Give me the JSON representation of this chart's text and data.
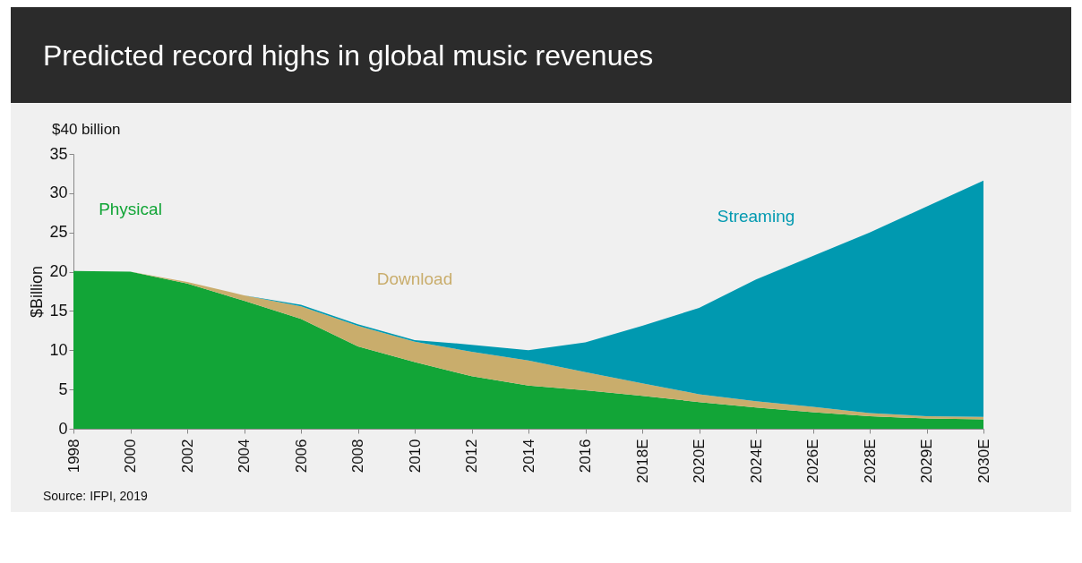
{
  "chart_data": {
    "type": "area",
    "title": "Predicted record highs in global music revenues",
    "ylabel": "$Billion",
    "stacked": true,
    "legend": false,
    "grid": false,
    "annotations": [
      "$40 billion",
      "Source: IFPI, 2019"
    ],
    "categories": [
      "1998",
      "2000",
      "2002",
      "2004",
      "2006",
      "2008",
      "2010",
      "2012",
      "2014",
      "2016",
      "2018E",
      "2020E",
      "2024E",
      "2026E",
      "2028E",
      "2029E",
      "2030E"
    ],
    "ylim": [
      0,
      35
    ],
    "yticks": [
      0,
      5,
      10,
      15,
      20,
      25,
      30,
      35
    ],
    "series": [
      {
        "name": "Physical",
        "color": "#12a537",
        "values": [
          20.1,
          20,
          18.5,
          16.3,
          14,
          10.5,
          8.5,
          6.7,
          5.5,
          4.9,
          4.2,
          3.4,
          2.7,
          2.1,
          1.6,
          1.3,
          1.2
        ]
      },
      {
        "name": "Download",
        "color": "#c9ad6c",
        "values": [
          0,
          0,
          0.2,
          0.7,
          1.6,
          2.6,
          2.6,
          3.1,
          3.2,
          2.3,
          1.6,
          1,
          0.8,
          0.7,
          0.4,
          0.3,
          0.3
        ]
      },
      {
        "name": "Streaming",
        "color": "#0099b0",
        "values": [
          0,
          0,
          0,
          0,
          0.2,
          0.2,
          0.2,
          0.9,
          1.3,
          3.8,
          7.3,
          11,
          15.5,
          19.2,
          23,
          26.7,
          30.1
        ]
      }
    ]
  }
}
